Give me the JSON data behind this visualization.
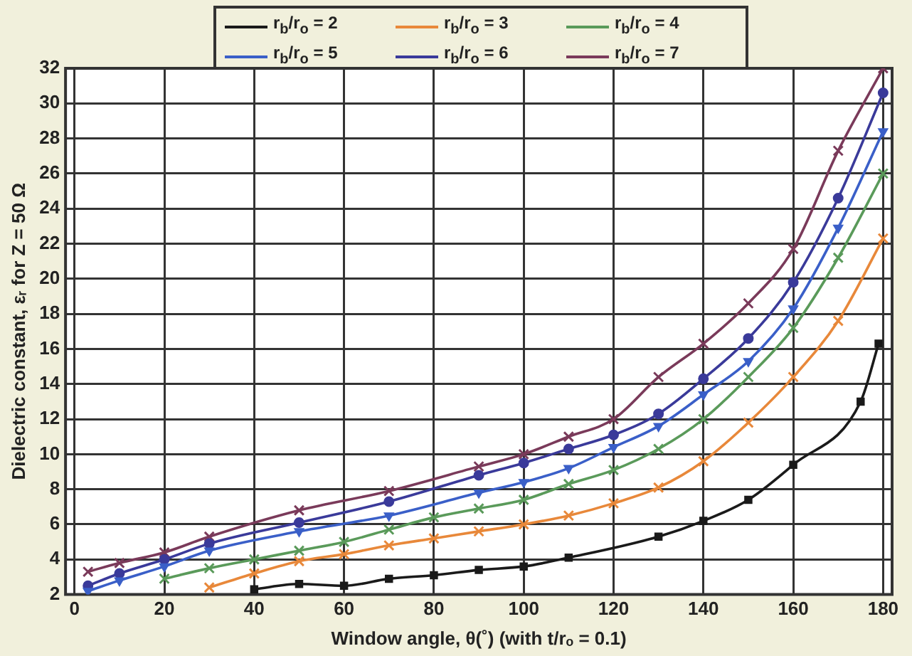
{
  "chart_data": {
    "type": "line",
    "xlabel": "Window angle, θ(˚) (with t/rₒ = 0.1)",
    "ylabel": "Dielectric constant, εᵣ for Z = 50 Ω",
    "xlim": [
      -2,
      182
    ],
    "xticks": [
      0,
      20,
      40,
      60,
      80,
      100,
      120,
      140,
      160,
      180
    ],
    "ylim": [
      2,
      32
    ],
    "yticks": [
      2,
      4,
      6,
      8,
      10,
      12,
      14,
      16,
      18,
      20,
      22,
      24,
      26,
      28,
      30,
      32
    ],
    "grid": true,
    "legend": "top",
    "line_style": "solid",
    "series": [
      {
        "name": "r$_{b}$/r$_{o}$ = 2",
        "color": "#1a1a1a",
        "marker": "square",
        "x": [
          40,
          50,
          60,
          70,
          80,
          90,
          100,
          110,
          130,
          140,
          150,
          160,
          175,
          179
        ],
        "values": [
          2.3,
          2.6,
          2.5,
          2.9,
          3.1,
          3.4,
          3.6,
          4.1,
          5.3,
          6.2,
          7.4,
          9.4,
          13.0,
          16.3
        ]
      },
      {
        "name": "r$_{b}$/r$_{o}$ = 3",
        "color": "#e8883a",
        "marker": "cross",
        "x": [
          30,
          40,
          50,
          60,
          70,
          80,
          90,
          100,
          110,
          120,
          130,
          140,
          150,
          160,
          170,
          180
        ],
        "values": [
          2.4,
          3.2,
          3.9,
          4.3,
          4.8,
          5.2,
          5.6,
          6.0,
          6.5,
          7.2,
          8.1,
          9.6,
          11.8,
          14.4,
          17.6,
          22.3
        ]
      },
      {
        "name": "r$_{b}$/r$_{o}$ = 4",
        "color": "#5a9a5a",
        "marker": "cross",
        "x": [
          20,
          30,
          40,
          50,
          60,
          70,
          80,
          90,
          100,
          110,
          120,
          130,
          140,
          150,
          160,
          170,
          180
        ],
        "values": [
          2.9,
          3.5,
          4.0,
          4.5,
          5.0,
          5.7,
          6.4,
          6.9,
          7.4,
          8.3,
          9.1,
          10.3,
          12.0,
          14.4,
          17.2,
          21.2,
          26.0
        ]
      },
      {
        "name": "r$_{b}$/r$_{o}$ = 5",
        "color": "#3a5fc8",
        "marker": "triangle",
        "x": [
          3,
          10,
          20,
          30,
          50,
          70,
          90,
          100,
          110,
          120,
          130,
          140,
          150,
          160,
          170,
          180
        ],
        "values": [
          2.2,
          2.8,
          3.6,
          4.5,
          5.6,
          6.5,
          7.8,
          8.4,
          9.2,
          10.4,
          11.6,
          13.4,
          15.3,
          18.3,
          22.9,
          28.4
        ]
      },
      {
        "name": "r$_{b}$/r$_{o}$ = 6",
        "color": "#3a3a9a",
        "marker": "circle",
        "x": [
          3,
          10,
          20,
          30,
          50,
          70,
          90,
          100,
          110,
          120,
          130,
          140,
          150,
          160,
          170,
          180
        ],
        "values": [
          2.5,
          3.2,
          4.0,
          4.9,
          6.1,
          7.3,
          8.8,
          9.5,
          10.3,
          11.1,
          12.3,
          14.3,
          16.6,
          19.8,
          24.6,
          30.6
        ]
      },
      {
        "name": "r$_{b}$/r$_{o}$ = 7",
        "color": "#7a3a5a",
        "marker": "cross",
        "x": [
          3,
          10,
          20,
          30,
          50,
          70,
          90,
          100,
          110,
          120,
          130,
          140,
          150,
          160,
          170,
          180
        ],
        "values": [
          3.3,
          3.8,
          4.4,
          5.3,
          6.8,
          7.9,
          9.3,
          10.0,
          11.0,
          12.0,
          14.4,
          16.3,
          18.6,
          21.7,
          27.3,
          32.0
        ]
      }
    ]
  }
}
